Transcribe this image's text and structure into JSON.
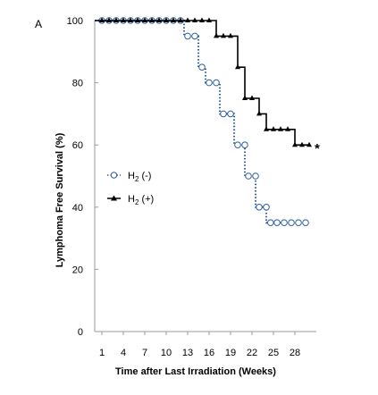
{
  "chart_data": {
    "type": "line",
    "panel_label": "A",
    "xlabel": "Time after Last Irradiation (Weeks)",
    "ylabel": "Lymphoma Free Survival (%)",
    "x_ticks": [
      1,
      4,
      7,
      10,
      13,
      16,
      19,
      22,
      25,
      28
    ],
    "x_tick_labels": [
      "1",
      "4",
      "7",
      "10",
      "13",
      "16",
      "19",
      "22",
      "25",
      "28"
    ],
    "y_ticks": [
      0,
      20,
      40,
      60,
      80,
      100
    ],
    "y_tick_labels": [
      "0",
      "20",
      "40",
      "60",
      "80",
      "100"
    ],
    "xlim": [
      0,
      31
    ],
    "ylim": [
      0,
      100
    ],
    "annotation": "*",
    "series": [
      {
        "name": "H₂ (-)",
        "color": "#2e5f9e",
        "marker": "open-circle",
        "line": "dotted",
        "steps": [
          [
            0,
            100
          ],
          [
            12.5,
            95
          ],
          [
            14.5,
            85
          ],
          [
            15.5,
            80
          ],
          [
            17.5,
            70
          ],
          [
            19.5,
            60
          ],
          [
            21,
            50
          ],
          [
            22.5,
            40
          ],
          [
            24,
            35
          ]
        ],
        "end_x": 30,
        "markers": [
          [
            1,
            100
          ],
          [
            2,
            100
          ],
          [
            3,
            100
          ],
          [
            4,
            100
          ],
          [
            5,
            100
          ],
          [
            6,
            100
          ],
          [
            7,
            100
          ],
          [
            8,
            100
          ],
          [
            9,
            100
          ],
          [
            10,
            100
          ],
          [
            11,
            100
          ],
          [
            12,
            100
          ],
          [
            13,
            95
          ],
          [
            14,
            95
          ],
          [
            15,
            85
          ],
          [
            16,
            80
          ],
          [
            17,
            80
          ],
          [
            18,
            70
          ],
          [
            19,
            70
          ],
          [
            20,
            60
          ],
          [
            21,
            60
          ],
          [
            21.5,
            50
          ],
          [
            22.5,
            50
          ],
          [
            23,
            40
          ],
          [
            24,
            40
          ],
          [
            24.6,
            35
          ],
          [
            25.5,
            35
          ],
          [
            26.5,
            35
          ],
          [
            27.5,
            35
          ],
          [
            28.5,
            35
          ],
          [
            29.5,
            35
          ]
        ]
      },
      {
        "name": "H₂ (+)",
        "color": "#000000",
        "marker": "filled-triangle",
        "line": "solid",
        "steps": [
          [
            0,
            100
          ],
          [
            17,
            95
          ],
          [
            20,
            85
          ],
          [
            21,
            75
          ],
          [
            23,
            70
          ],
          [
            24,
            65
          ],
          [
            28,
            60
          ]
        ],
        "end_x": 30,
        "markers": [
          [
            1,
            100
          ],
          [
            2,
            100
          ],
          [
            3,
            100
          ],
          [
            4,
            100
          ],
          [
            5,
            100
          ],
          [
            6,
            100
          ],
          [
            7,
            100
          ],
          [
            8,
            100
          ],
          [
            9,
            100
          ],
          [
            10,
            100
          ],
          [
            11,
            100
          ],
          [
            12,
            100
          ],
          [
            13,
            100
          ],
          [
            14,
            100
          ],
          [
            15,
            100
          ],
          [
            16,
            100
          ],
          [
            17,
            95
          ],
          [
            18,
            95
          ],
          [
            19,
            95
          ],
          [
            20,
            85
          ],
          [
            21,
            75
          ],
          [
            22,
            75
          ],
          [
            23,
            70
          ],
          [
            24,
            65
          ],
          [
            25,
            65
          ],
          [
            26,
            65
          ],
          [
            27,
            65
          ],
          [
            28,
            60
          ],
          [
            29,
            60
          ],
          [
            30,
            60
          ]
        ]
      }
    ],
    "legend": {
      "placement": "left-middle",
      "entries": [
        {
          "label_main": "H",
          "label_sub": "2",
          "label_rest": " (-)"
        },
        {
          "label_main": "H",
          "label_sub": "2",
          "label_rest": " (+)"
        }
      ]
    }
  }
}
